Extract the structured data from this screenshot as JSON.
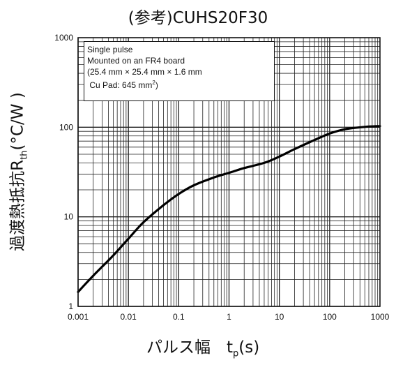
{
  "chart_data": {
    "type": "line",
    "title": "(参考)CUHS20F30",
    "ylabel": {
      "main": "過渡熱抵抗R",
      "sub": "th",
      "unit": "(°C/W )"
    },
    "xlabel": {
      "main": "パルス幅　t",
      "sub": "p",
      "unit": "(s)"
    },
    "x_scale": "log",
    "y_scale": "log",
    "xlim": [
      0.001,
      1000
    ],
    "ylim": [
      1,
      1000
    ],
    "x_ticks": [
      "0.001",
      "0.01",
      "0.1",
      "1",
      "10",
      "100",
      "1000"
    ],
    "y_ticks": [
      "1",
      "10",
      "100",
      "1000"
    ],
    "grid": true,
    "annotation": {
      "line1": "Single pulse",
      "line2": "Mounted on an FR4 board",
      "line3": "(25.4 mm × 25.4 mm × 1.6 mm",
      "line4a": "Cu Pad: 645 mm",
      "line4sup": "2",
      "line4b": ")"
    },
    "series": [
      {
        "x": [
          0.001,
          0.002,
          0.005,
          0.01,
          0.02,
          0.05,
          0.1,
          0.2,
          0.5,
          1,
          2,
          5,
          10,
          20,
          50,
          100,
          200,
          500,
          1000
        ],
        "y": [
          1.45,
          2.2,
          3.7,
          5.7,
          8.7,
          13.5,
          18.0,
          22.5,
          27.5,
          31.0,
          35.0,
          40.0,
          47.0,
          57.0,
          72.0,
          85.0,
          95.0,
          101,
          103
        ]
      }
    ]
  }
}
